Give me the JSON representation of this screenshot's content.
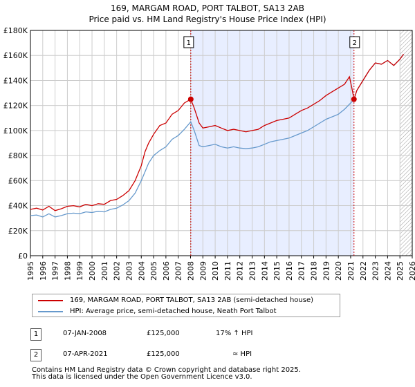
{
  "title": {
    "line1": "169, MARGAM ROAD, PORT TALBOT, SA13 2AB",
    "line2": "Price paid vs. HM Land Registry's House Price Index (HPI)"
  },
  "colors": {
    "red": "#cc0000",
    "blue": "#6699cc",
    "shade": "#e8eeff",
    "grid": "#cccccc"
  },
  "chart_data": {
    "type": "line",
    "title": "Price paid vs. HM Land Registry's House Price Index (HPI)",
    "xlabel": "",
    "ylabel": "",
    "xlim": [
      1995,
      2026
    ],
    "ylim": [
      0,
      180000
    ],
    "x_ticks": [
      "1995",
      "1996",
      "1997",
      "1998",
      "1999",
      "2000",
      "2001",
      "2002",
      "2003",
      "2004",
      "2005",
      "2006",
      "2007",
      "2008",
      "2009",
      "2010",
      "2011",
      "2012",
      "2013",
      "2014",
      "2015",
      "2016",
      "2017",
      "2018",
      "2019",
      "2020",
      "2021",
      "2022",
      "2023",
      "2024",
      "2025",
      "2026"
    ],
    "y_ticks": [
      {
        "value": 0,
        "label": "£0"
      },
      {
        "value": 20000,
        "label": "£20K"
      },
      {
        "value": 40000,
        "label": "£40K"
      },
      {
        "value": 60000,
        "label": "£60K"
      },
      {
        "value": 80000,
        "label": "£80K"
      },
      {
        "value": 100000,
        "label": "£100K"
      },
      {
        "value": 120000,
        "label": "£120K"
      },
      {
        "value": 140000,
        "label": "£140K"
      },
      {
        "value": 160000,
        "label": "£160K"
      },
      {
        "value": 180000,
        "label": "£180K"
      }
    ],
    "shaded_range": [
      2008.02,
      2021.27
    ],
    "future_hatch_from": 2025.0,
    "series": [
      {
        "name": "169, MARGAM ROAD, PORT TALBOT, SA13 2AB (semi-detached house)",
        "color": "#cc0000",
        "points": [
          [
            1995.0,
            37000
          ],
          [
            1995.5,
            38000
          ],
          [
            1996.0,
            36500
          ],
          [
            1996.5,
            39500
          ],
          [
            1997.0,
            36000
          ],
          [
            1997.5,
            37500
          ],
          [
            1998.0,
            39500
          ],
          [
            1998.5,
            40000
          ],
          [
            1999.0,
            39000
          ],
          [
            1999.5,
            41000
          ],
          [
            2000.0,
            40000
          ],
          [
            2000.5,
            41500
          ],
          [
            2001.0,
            41000
          ],
          [
            2001.5,
            44000
          ],
          [
            2002.0,
            45000
          ],
          [
            2002.5,
            48000
          ],
          [
            2003.0,
            52000
          ],
          [
            2003.5,
            60000
          ],
          [
            2004.0,
            72000
          ],
          [
            2004.3,
            83000
          ],
          [
            2004.6,
            90000
          ],
          [
            2005.0,
            97000
          ],
          [
            2005.5,
            104000
          ],
          [
            2006.0,
            106000
          ],
          [
            2006.5,
            113000
          ],
          [
            2007.0,
            116000
          ],
          [
            2007.5,
            122000
          ],
          [
            2008.02,
            125000
          ],
          [
            2008.3,
            118000
          ],
          [
            2008.7,
            106000
          ],
          [
            2009.0,
            102000
          ],
          [
            2009.5,
            103000
          ],
          [
            2010.0,
            104000
          ],
          [
            2010.5,
            102000
          ],
          [
            2011.0,
            100000
          ],
          [
            2011.5,
            101000
          ],
          [
            2012.0,
            100000
          ],
          [
            2012.5,
            99000
          ],
          [
            2013.0,
            100000
          ],
          [
            2013.5,
            101000
          ],
          [
            2014.0,
            104000
          ],
          [
            2014.5,
            106000
          ],
          [
            2015.0,
            108000
          ],
          [
            2015.5,
            109000
          ],
          [
            2016.0,
            110000
          ],
          [
            2016.5,
            113000
          ],
          [
            2017.0,
            116000
          ],
          [
            2017.5,
            118000
          ],
          [
            2018.0,
            121000
          ],
          [
            2018.5,
            124000
          ],
          [
            2019.0,
            128000
          ],
          [
            2019.5,
            131000
          ],
          [
            2020.0,
            134000
          ],
          [
            2020.5,
            137000
          ],
          [
            2020.9,
            143000
          ],
          [
            2021.1,
            134000
          ],
          [
            2021.27,
            125000
          ],
          [
            2021.5,
            132000
          ],
          [
            2022.0,
            140000
          ],
          [
            2022.5,
            148000
          ],
          [
            2023.0,
            154000
          ],
          [
            2023.5,
            153000
          ],
          [
            2024.0,
            156000
          ],
          [
            2024.5,
            152000
          ],
          [
            2025.0,
            157000
          ],
          [
            2025.3,
            161000
          ]
        ]
      },
      {
        "name": "HPI: Average price, semi-detached house, Neath Port Talbot",
        "color": "#6699cc",
        "points": [
          [
            1995.0,
            32000
          ],
          [
            1995.5,
            32500
          ],
          [
            1996.0,
            31000
          ],
          [
            1996.5,
            33500
          ],
          [
            1997.0,
            31000
          ],
          [
            1997.5,
            32000
          ],
          [
            1998.0,
            33500
          ],
          [
            1998.5,
            34000
          ],
          [
            1999.0,
            33500
          ],
          [
            1999.5,
            35000
          ],
          [
            2000.0,
            34500
          ],
          [
            2000.5,
            35500
          ],
          [
            2001.0,
            35000
          ],
          [
            2001.5,
            37000
          ],
          [
            2002.0,
            38000
          ],
          [
            2002.5,
            40500
          ],
          [
            2003.0,
            44000
          ],
          [
            2003.5,
            50000
          ],
          [
            2004.0,
            60000
          ],
          [
            2004.3,
            67000
          ],
          [
            2004.6,
            74000
          ],
          [
            2005.0,
            80000
          ],
          [
            2005.5,
            84000
          ],
          [
            2006.0,
            87000
          ],
          [
            2006.5,
            93000
          ],
          [
            2007.0,
            96000
          ],
          [
            2007.5,
            101000
          ],
          [
            2008.02,
            107000
          ],
          [
            2008.3,
            100000
          ],
          [
            2008.7,
            88000
          ],
          [
            2009.0,
            87000
          ],
          [
            2009.5,
            88000
          ],
          [
            2010.0,
            89000
          ],
          [
            2010.5,
            87000
          ],
          [
            2011.0,
            86000
          ],
          [
            2011.5,
            87000
          ],
          [
            2012.0,
            86000
          ],
          [
            2012.5,
            85500
          ],
          [
            2013.0,
            86000
          ],
          [
            2013.5,
            87000
          ],
          [
            2014.0,
            89000
          ],
          [
            2014.5,
            91000
          ],
          [
            2015.0,
            92000
          ],
          [
            2015.5,
            93000
          ],
          [
            2016.0,
            94000
          ],
          [
            2016.5,
            96000
          ],
          [
            2017.0,
            98000
          ],
          [
            2017.5,
            100000
          ],
          [
            2018.0,
            103000
          ],
          [
            2018.5,
            106000
          ],
          [
            2019.0,
            109000
          ],
          [
            2019.5,
            111000
          ],
          [
            2020.0,
            113000
          ],
          [
            2020.5,
            117000
          ],
          [
            2021.0,
            122000
          ],
          [
            2021.27,
            125000
          ],
          [
            2021.5,
            132000
          ],
          [
            2022.0,
            140000
          ],
          [
            2022.5,
            148000
          ],
          [
            2023.0,
            154000
          ],
          [
            2023.5,
            153000
          ],
          [
            2024.0,
            156000
          ],
          [
            2024.5,
            152000
          ],
          [
            2025.0,
            157000
          ],
          [
            2025.3,
            161000
          ]
        ]
      }
    ],
    "annotations": [
      {
        "id": "1",
        "x": 2008.02,
        "y": 125000
      },
      {
        "id": "2",
        "x": 2021.27,
        "y": 125000
      }
    ]
  },
  "legend": {
    "series1": "169, MARGAM ROAD, PORT TALBOT, SA13 2AB (semi-detached house)",
    "series2": "HPI: Average price, semi-detached house, Neath Port Talbot"
  },
  "sales": [
    {
      "id": "1",
      "date": "07-JAN-2008",
      "price": "£125,000",
      "hpi": "17% ↑ HPI"
    },
    {
      "id": "2",
      "date": "07-APR-2021",
      "price": "£125,000",
      "hpi": "≈ HPI"
    }
  ],
  "footer": {
    "line1": "Contains HM Land Registry data © Crown copyright and database right 2025.",
    "line2": "This data is licensed under the Open Government Licence v3.0."
  }
}
